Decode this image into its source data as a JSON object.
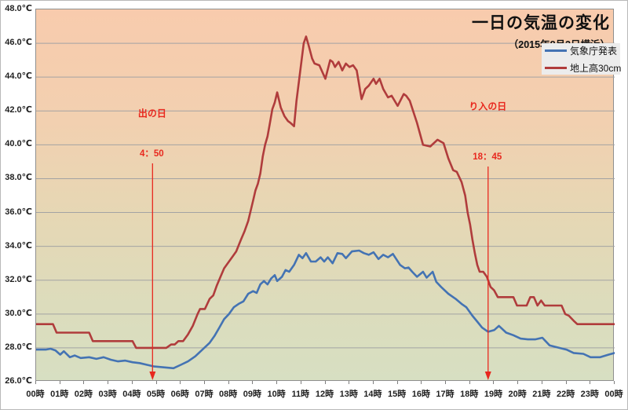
{
  "title": "一日の気温の変化",
  "subtitle": "（2015年8月2日横浜）",
  "legend": {
    "series1": "気象庁発表",
    "series2": "地上高30cm"
  },
  "colors": {
    "series_blue": "#4473b3",
    "series_red": "#b03c3c",
    "annotation_red": "#e8281e",
    "grid": "#a3a3a3",
    "plot_border": "#8f8f8f",
    "legend_bg": "#ececec",
    "bg_gradient_top": "#f8cbad",
    "bg_gradient_upper_mid": "#f2d0b0",
    "bg_gradient_mid": "#e6d7b4",
    "bg_gradient_lower_mid": "#dcdcbc",
    "bg_gradient_bottom": "#d7dfc2"
  },
  "chart_data": {
    "type": "line",
    "title": "一日の気温の変化",
    "subtitle": "（2015年8月2日横浜）",
    "xlim": [
      0,
      24
    ],
    "ylim": [
      26,
      48
    ],
    "y_tick_step": 2,
    "grid": "horizontal-only",
    "legend_position": "top-right",
    "x_ticks": [
      "00時",
      "01時",
      "02時",
      "03時",
      "04時",
      "05時",
      "06時",
      "07時",
      "08時",
      "09時",
      "10時",
      "11時",
      "12時",
      "13時",
      "14時",
      "15時",
      "16時",
      "17時",
      "18時",
      "19時",
      "20時",
      "21時",
      "22時",
      "23時",
      "00時"
    ],
    "y_ticks": [
      "48.0℃",
      "46.0℃",
      "44.0℃",
      "42.0℃",
      "40.0℃",
      "38.0℃",
      "36.0℃",
      "34.0℃",
      "32.0℃",
      "30.0℃",
      "28.0℃",
      "26.0℃"
    ],
    "series": [
      {
        "name": "気象庁発表",
        "color": "#4473b3",
        "points": [
          [
            0,
            27.9
          ],
          [
            0.4,
            27.9
          ],
          [
            0.6,
            27.95
          ],
          [
            0.8,
            27.85
          ],
          [
            1.0,
            27.6
          ],
          [
            1.15,
            27.8
          ],
          [
            1.4,
            27.45
          ],
          [
            1.6,
            27.55
          ],
          [
            1.85,
            27.4
          ],
          [
            2.2,
            27.45
          ],
          [
            2.5,
            27.35
          ],
          [
            2.8,
            27.45
          ],
          [
            3.1,
            27.3
          ],
          [
            3.4,
            27.2
          ],
          [
            3.7,
            27.25
          ],
          [
            4.0,
            27.15
          ],
          [
            4.3,
            27.1
          ],
          [
            4.6,
            27.0
          ],
          [
            4.9,
            26.9
          ],
          [
            5.3,
            26.85
          ],
          [
            5.7,
            26.8
          ],
          [
            6.0,
            27.0
          ],
          [
            6.3,
            27.2
          ],
          [
            6.6,
            27.5
          ],
          [
            6.9,
            27.9
          ],
          [
            7.2,
            28.3
          ],
          [
            7.4,
            28.7
          ],
          [
            7.6,
            29.2
          ],
          [
            7.8,
            29.7
          ],
          [
            8.0,
            30.0
          ],
          [
            8.2,
            30.4
          ],
          [
            8.4,
            30.6
          ],
          [
            8.6,
            30.75
          ],
          [
            8.8,
            31.2
          ],
          [
            9.0,
            31.35
          ],
          [
            9.15,
            31.25
          ],
          [
            9.3,
            31.75
          ],
          [
            9.45,
            31.95
          ],
          [
            9.6,
            31.75
          ],
          [
            9.75,
            32.1
          ],
          [
            9.9,
            32.3
          ],
          [
            10.0,
            31.95
          ],
          [
            10.2,
            32.2
          ],
          [
            10.35,
            32.6
          ],
          [
            10.5,
            32.5
          ],
          [
            10.7,
            32.9
          ],
          [
            10.9,
            33.5
          ],
          [
            11.05,
            33.3
          ],
          [
            11.2,
            33.6
          ],
          [
            11.4,
            33.1
          ],
          [
            11.6,
            33.1
          ],
          [
            11.8,
            33.35
          ],
          [
            11.95,
            33.1
          ],
          [
            12.1,
            33.35
          ],
          [
            12.3,
            33.0
          ],
          [
            12.5,
            33.6
          ],
          [
            12.7,
            33.55
          ],
          [
            12.85,
            33.3
          ],
          [
            13.1,
            33.7
          ],
          [
            13.4,
            33.75
          ],
          [
            13.6,
            33.6
          ],
          [
            13.8,
            33.5
          ],
          [
            14.0,
            33.65
          ],
          [
            14.2,
            33.25
          ],
          [
            14.4,
            33.5
          ],
          [
            14.6,
            33.35
          ],
          [
            14.8,
            33.55
          ],
          [
            15.1,
            32.9
          ],
          [
            15.3,
            32.7
          ],
          [
            15.45,
            32.75
          ],
          [
            15.6,
            32.5
          ],
          [
            15.8,
            32.2
          ],
          [
            16.05,
            32.5
          ],
          [
            16.2,
            32.15
          ],
          [
            16.45,
            32.5
          ],
          [
            16.6,
            31.9
          ],
          [
            16.8,
            31.6
          ],
          [
            17.1,
            31.2
          ],
          [
            17.4,
            30.9
          ],
          [
            17.65,
            30.6
          ],
          [
            17.85,
            30.4
          ],
          [
            18.1,
            29.9
          ],
          [
            18.3,
            29.55
          ],
          [
            18.5,
            29.2
          ],
          [
            18.75,
            28.95
          ],
          [
            19.0,
            29.05
          ],
          [
            19.2,
            29.3
          ],
          [
            19.5,
            28.9
          ],
          [
            19.8,
            28.75
          ],
          [
            20.1,
            28.55
          ],
          [
            20.4,
            28.5
          ],
          [
            20.7,
            28.5
          ],
          [
            21.0,
            28.6
          ],
          [
            21.3,
            28.15
          ],
          [
            21.7,
            28.0
          ],
          [
            22.0,
            27.9
          ],
          [
            22.3,
            27.7
          ],
          [
            22.7,
            27.65
          ],
          [
            23.0,
            27.45
          ],
          [
            23.4,
            27.45
          ],
          [
            23.75,
            27.6
          ],
          [
            24,
            27.7
          ]
        ]
      },
      {
        "name": "地上高30cm",
        "color": "#b03c3c",
        "points": [
          [
            0,
            29.4
          ],
          [
            0.7,
            29.4
          ],
          [
            0.85,
            28.9
          ],
          [
            2.2,
            28.9
          ],
          [
            2.35,
            28.4
          ],
          [
            4.0,
            28.4
          ],
          [
            4.15,
            28.0
          ],
          [
            5.4,
            28.0
          ],
          [
            5.6,
            28.2
          ],
          [
            5.75,
            28.2
          ],
          [
            5.9,
            28.4
          ],
          [
            6.1,
            28.4
          ],
          [
            6.3,
            28.8
          ],
          [
            6.5,
            29.3
          ],
          [
            6.7,
            30.0
          ],
          [
            6.8,
            30.3
          ],
          [
            7.0,
            30.3
          ],
          [
            7.2,
            30.9
          ],
          [
            7.35,
            31.1
          ],
          [
            7.5,
            31.7
          ],
          [
            7.65,
            32.2
          ],
          [
            7.8,
            32.7
          ],
          [
            8.0,
            33.1
          ],
          [
            8.15,
            33.4
          ],
          [
            8.3,
            33.7
          ],
          [
            8.5,
            34.4
          ],
          [
            8.65,
            34.9
          ],
          [
            8.8,
            35.5
          ],
          [
            9.0,
            36.7
          ],
          [
            9.1,
            37.3
          ],
          [
            9.2,
            37.7
          ],
          [
            9.3,
            38.3
          ],
          [
            9.4,
            39.3
          ],
          [
            9.5,
            40.0
          ],
          [
            9.6,
            40.5
          ],
          [
            9.7,
            41.3
          ],
          [
            9.8,
            42.1
          ],
          [
            9.9,
            42.5
          ],
          [
            10.0,
            43.1
          ],
          [
            10.15,
            42.2
          ],
          [
            10.3,
            41.7
          ],
          [
            10.45,
            41.4
          ],
          [
            10.55,
            41.3
          ],
          [
            10.7,
            41.1
          ],
          [
            10.8,
            42.6
          ],
          [
            10.95,
            44.3
          ],
          [
            11.1,
            46.0
          ],
          [
            11.2,
            46.4
          ],
          [
            11.3,
            45.9
          ],
          [
            11.45,
            45.1
          ],
          [
            11.55,
            44.8
          ],
          [
            11.75,
            44.7
          ],
          [
            12.0,
            43.9
          ],
          [
            12.2,
            45.0
          ],
          [
            12.3,
            44.9
          ],
          [
            12.4,
            44.6
          ],
          [
            12.55,
            44.9
          ],
          [
            12.7,
            44.4
          ],
          [
            12.85,
            44.8
          ],
          [
            13.0,
            44.6
          ],
          [
            13.15,
            44.7
          ],
          [
            13.3,
            44.4
          ],
          [
            13.5,
            42.7
          ],
          [
            13.65,
            43.3
          ],
          [
            13.8,
            43.5
          ],
          [
            14.0,
            43.9
          ],
          [
            14.1,
            43.6
          ],
          [
            14.25,
            43.9
          ],
          [
            14.4,
            43.3
          ],
          [
            14.6,
            42.8
          ],
          [
            14.75,
            42.9
          ],
          [
            15.0,
            42.3
          ],
          [
            15.25,
            43.0
          ],
          [
            15.35,
            42.9
          ],
          [
            15.5,
            42.6
          ],
          [
            15.8,
            41.3
          ],
          [
            16.05,
            40.0
          ],
          [
            16.35,
            39.9
          ],
          [
            16.65,
            40.3
          ],
          [
            16.9,
            40.1
          ],
          [
            17.1,
            39.2
          ],
          [
            17.3,
            38.5
          ],
          [
            17.45,
            38.4
          ],
          [
            17.65,
            37.8
          ],
          [
            17.8,
            37.0
          ],
          [
            17.9,
            36.0
          ],
          [
            18.0,
            35.3
          ],
          [
            18.1,
            34.4
          ],
          [
            18.2,
            33.6
          ],
          [
            18.3,
            32.9
          ],
          [
            18.4,
            32.5
          ],
          [
            18.55,
            32.5
          ],
          [
            18.7,
            32.2
          ],
          [
            18.85,
            31.6
          ],
          [
            19.0,
            31.4
          ],
          [
            19.15,
            31.0
          ],
          [
            19.8,
            31.0
          ],
          [
            19.95,
            30.5
          ],
          [
            20.35,
            30.5
          ],
          [
            20.5,
            31.0
          ],
          [
            20.65,
            31.0
          ],
          [
            20.8,
            30.5
          ],
          [
            20.95,
            30.8
          ],
          [
            21.1,
            30.5
          ],
          [
            21.8,
            30.5
          ],
          [
            21.95,
            30.0
          ],
          [
            22.1,
            29.9
          ],
          [
            22.3,
            29.6
          ],
          [
            22.45,
            29.4
          ],
          [
            24,
            29.4
          ]
        ]
      }
    ],
    "annotations": [
      {
        "label": "日の出",
        "time": "4：50",
        "hour": 4.83
      },
      {
        "label": "日の入り",
        "time": "18：45",
        "hour": 18.75
      }
    ]
  }
}
